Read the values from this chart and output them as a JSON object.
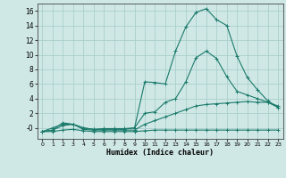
{
  "xlabel": "Humidex (Indice chaleur)",
  "ylabel": "",
  "background_color": "#cfe8e6",
  "grid_color": "#aacfcc",
  "line_color": "#1a7a6a",
  "x_values": [
    0,
    1,
    2,
    3,
    4,
    5,
    6,
    7,
    8,
    9,
    10,
    11,
    12,
    13,
    14,
    15,
    16,
    17,
    18,
    19,
    20,
    21,
    22,
    23
  ],
  "series": [
    [
      -0.5,
      -0.5,
      -0.3,
      -0.2,
      -0.4,
      -0.5,
      -0.5,
      -0.5,
      -0.5,
      -0.5,
      -0.4,
      -0.3,
      -0.3,
      -0.3,
      -0.3,
      -0.3,
      -0.3,
      -0.3,
      -0.3,
      -0.3,
      -0.3,
      -0.3,
      -0.3,
      -0.3
    ],
    [
      -0.5,
      -0.3,
      0.3,
      0.5,
      -0.2,
      -0.3,
      -0.3,
      -0.3,
      -0.3,
      -0.3,
      0.5,
      1.0,
      1.5,
      2.0,
      2.5,
      3.0,
      3.2,
      3.3,
      3.4,
      3.5,
      3.6,
      3.5,
      3.5,
      2.8
    ],
    [
      -0.5,
      0.0,
      0.5,
      0.5,
      0.0,
      -0.2,
      -0.1,
      -0.1,
      -0.1,
      0.0,
      2.0,
      2.2,
      3.5,
      4.0,
      6.3,
      9.6,
      10.5,
      9.5,
      7.0,
      5.0,
      4.5,
      4.0,
      3.5,
      3.0
    ],
    [
      -0.5,
      -0.3,
      0.7,
      0.5,
      0.0,
      -0.2,
      -0.2,
      -0.2,
      -0.2,
      0.0,
      6.3,
      6.2,
      6.0,
      10.5,
      13.8,
      15.8,
      16.3,
      14.8,
      14.0,
      9.8,
      6.9,
      5.2,
      3.7,
      2.8
    ]
  ],
  "xlim": [
    -0.5,
    23.5
  ],
  "ylim": [
    -1.5,
    17
  ],
  "yticks": [
    0,
    2,
    4,
    6,
    8,
    10,
    12,
    14,
    16
  ],
  "ytick_labels": [
    "-0",
    "2",
    "4",
    "6",
    "8",
    "10",
    "12",
    "14",
    "16"
  ],
  "xticks": [
    0,
    1,
    2,
    3,
    4,
    5,
    6,
    7,
    8,
    9,
    10,
    11,
    12,
    13,
    14,
    15,
    16,
    17,
    18,
    19,
    20,
    21,
    22,
    23
  ]
}
